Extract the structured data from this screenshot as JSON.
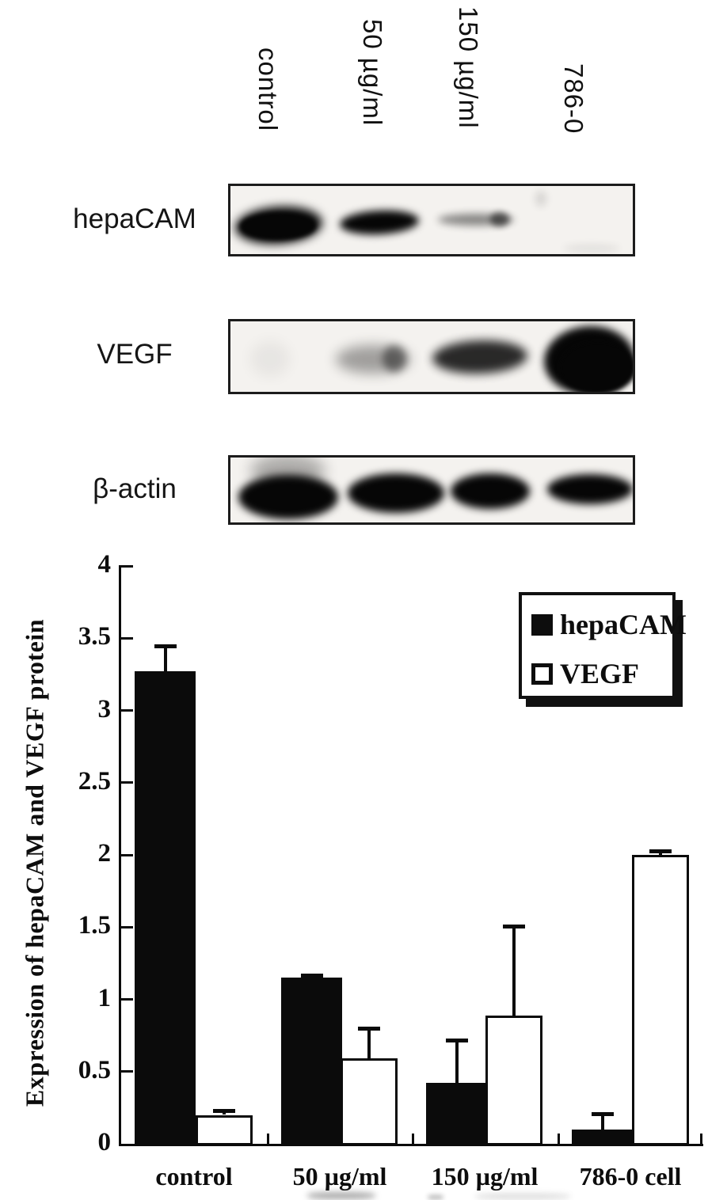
{
  "figure": {
    "lane_labels": [
      "control",
      "50 µg/ml",
      "150 µg/ml",
      "786-0"
    ],
    "blots": [
      {
        "label": "hepaCAM",
        "lane_bands": [
          "strong",
          "medium",
          "faint",
          "none"
        ]
      },
      {
        "label": "VEGF",
        "lane_bands": [
          "none",
          "faint",
          "medium",
          "very-strong"
        ]
      },
      {
        "label": "β-actin",
        "lane_bands": [
          "strong",
          "strong",
          "strong",
          "strong"
        ]
      }
    ]
  },
  "chart_data": {
    "type": "bar",
    "title": "",
    "xlabel": "",
    "ylabel": "Expression of hepaCAM and VEGF protein",
    "categories": [
      "control",
      "50 µg/ml",
      "150 µg/ml",
      "786-0 cell"
    ],
    "series": [
      {
        "name": "hepaCAM",
        "fill": "#0b0b0b",
        "values": [
          3.27,
          1.15,
          0.42,
          0.1
        ],
        "errors": [
          0.19,
          0.03,
          0.31,
          0.12
        ]
      },
      {
        "name": "VEGF",
        "fill": "#ffffff",
        "values": [
          0.2,
          0.59,
          0.89,
          2.0
        ],
        "errors": [
          0.04,
          0.22,
          0.63,
          0.04
        ]
      }
    ],
    "ylim": [
      0,
      4
    ],
    "ytick_step": 0.5,
    "yticks": [
      "4",
      "3.5",
      "3",
      "2.5",
      "2",
      "1.5",
      "1",
      "0.5",
      "0"
    ],
    "legend": {
      "position": "top-right",
      "entries": [
        "hepaCAM",
        "VEGF"
      ]
    },
    "grid": false,
    "colors": {
      "bar_black": "#0b0b0b",
      "bar_white": "#ffffff",
      "axis": "#0b0b0b"
    }
  }
}
